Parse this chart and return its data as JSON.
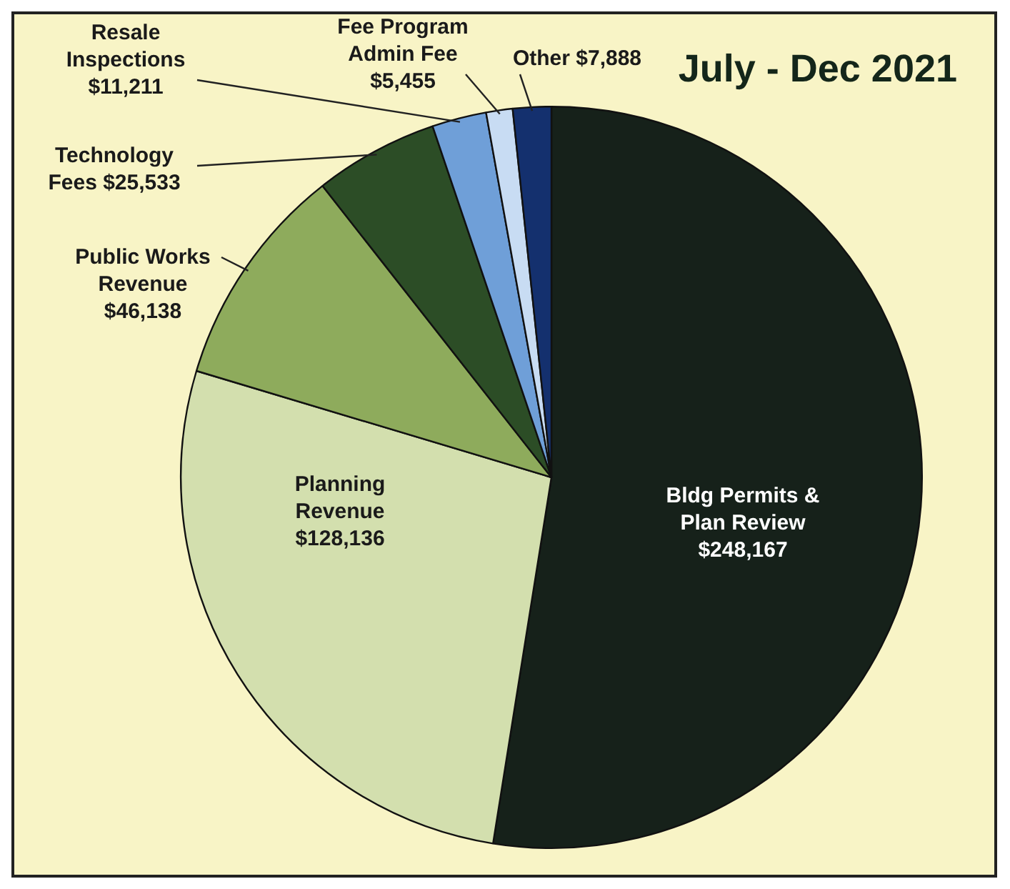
{
  "chart_data": {
    "type": "pie",
    "title": "July - Dec 2021",
    "categories": [
      "Bldg Permits & Plan Review",
      "Planning Revenue",
      "Public Works Revenue",
      "Technology Fees",
      "Resale Inspections",
      "Fee Program Admin Fee",
      "Other"
    ],
    "values": [
      248167,
      128136,
      46138,
      25533,
      11211,
      5455,
      7888
    ],
    "value_labels": [
      "$248,167",
      "$128,136",
      "$46,138",
      "$25,533",
      "$11,211",
      "$5,455",
      "$7,888"
    ],
    "colors": [
      "#16211a",
      "#d3dfae",
      "#8eab5c",
      "#2c4d26",
      "#6f9fd8",
      "#c8dcf3",
      "#14306e"
    ],
    "legend": false
  }
}
